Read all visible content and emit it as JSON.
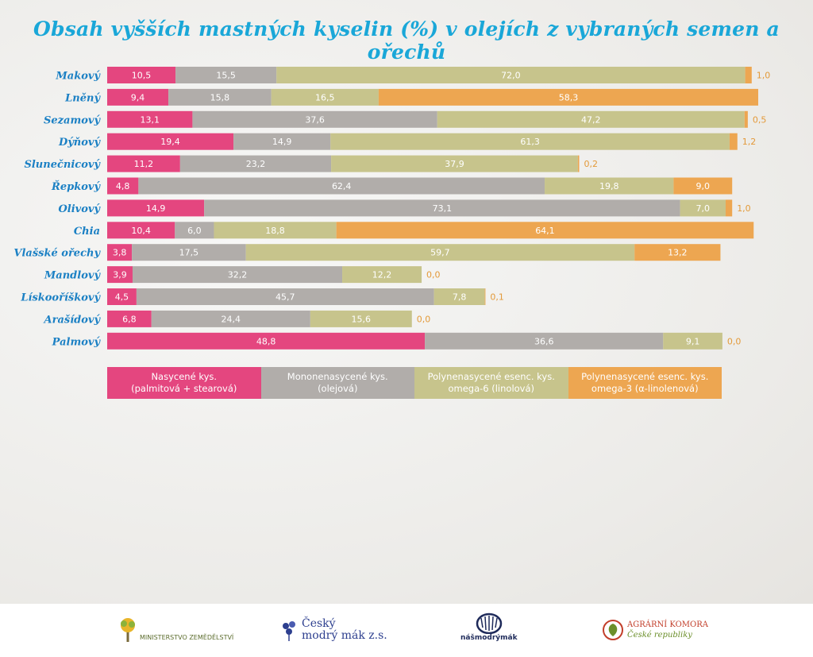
{
  "title": "Obsah vyšších mastných kyselin (%) v olejích z vybraných semen a ořechů",
  "colors": {
    "saturated": "#e4467f",
    "mono": "#b1adaa",
    "omega6": "#c7c48c",
    "omega3": "#eda651",
    "label": "#1b80c4",
    "title": "#1aa7d8"
  },
  "legend": [
    {
      "line1": "Nasycené kys.",
      "line2": "(palmitová + stearová)",
      "color": "#e4467f"
    },
    {
      "line1": "Mononenasycené kys.",
      "line2": "(olejová)",
      "color": "#b1adaa"
    },
    {
      "line1": "Polynenasycené esenc. kys.",
      "line2": "omega-6 (linolová)",
      "color": "#c7c48c"
    },
    {
      "line1": "Polynenasycené esenc. kys.",
      "line2": "omega-3 (α-linolenová)",
      "color": "#eda651"
    }
  ],
  "chart_data": {
    "type": "bar",
    "orientation": "horizontal",
    "stacked": true,
    "title": "Obsah vyšších mastných kyselin (%) v olejích z vybraných semen a ořechů",
    "categories": [
      "Makový",
      "Lněný",
      "Sezamový",
      "Dýňový",
      "Slunečnicový",
      "Řepkový",
      "Olivový",
      "Chia",
      "Vlašské ořechy",
      "Mandlový",
      "Lískooříškový",
      "Arašídový",
      "Palmový"
    ],
    "series": [
      {
        "name": "Nasycené kys. (palmitová + stearová)",
        "color": "#e4467f",
        "values": [
          10.5,
          9.4,
          13.1,
          19.4,
          11.2,
          4.8,
          14.9,
          10.4,
          3.8,
          3.9,
          4.5,
          6.8,
          48.8
        ]
      },
      {
        "name": "Mononenasycené kys. (olejová)",
        "color": "#b1adaa",
        "values": [
          15.5,
          15.8,
          37.6,
          14.9,
          23.2,
          62.4,
          73.1,
          6.0,
          17.5,
          32.2,
          45.7,
          24.4,
          36.6
        ]
      },
      {
        "name": "Polynenasycené esenc. kys. omega-6 (linolová)",
        "color": "#c7c48c",
        "values": [
          72.0,
          16.5,
          47.2,
          61.3,
          37.9,
          19.8,
          7.0,
          18.8,
          59.7,
          12.2,
          7.8,
          15.6,
          9.1
        ]
      },
      {
        "name": "Polynenasycené esenc. kys. omega-3 (α-linolenová)",
        "color": "#eda651",
        "values": [
          1.0,
          58.3,
          0.5,
          1.2,
          0.2,
          9.0,
          1.0,
          64.1,
          13.2,
          0.0,
          0.1,
          0.0,
          0.0
        ]
      }
    ],
    "value_labels": [
      [
        "10,5",
        "15,5",
        "72,0",
        "1,0"
      ],
      [
        "9,4",
        "15,8",
        "16,5",
        "58,3"
      ],
      [
        "13,1",
        "37,6",
        "47,2",
        "0,5"
      ],
      [
        "19,4",
        "14,9",
        "61,3",
        "1,2"
      ],
      [
        "11,2",
        "23,2",
        "37,9",
        "0,2"
      ],
      [
        "4,8",
        "62,4",
        "19,8",
        "9,0"
      ],
      [
        "14,9",
        "73,1",
        "7,0",
        "1,0"
      ],
      [
        "10,4",
        "6,0",
        "18,8",
        "64,1"
      ],
      [
        "3,8",
        "17,5",
        "59,7",
        "13,2"
      ],
      [
        "3,9",
        "32,2",
        "12,2",
        "0,0"
      ],
      [
        "4,5",
        "45,7",
        "7,8",
        "0,1"
      ],
      [
        "6,8",
        "24,4",
        "15,6",
        "0,0"
      ],
      [
        "48,8",
        "36,6",
        "9,1",
        "0,0"
      ]
    ],
    "xlim": [
      0,
      100
    ],
    "grid": false,
    "legend_position": "bottom"
  },
  "footer": {
    "mze_text": "MINISTERSTVO ZEMĚDĚLSTVÍ",
    "cmm_line1": "Český",
    "cmm_line2": "modrý mák z.s.",
    "nmm_text": "nášmodrýmák",
    "ak_line1": "AGRÁRNÍ KOMORA",
    "ak_line2": "České republiky"
  }
}
